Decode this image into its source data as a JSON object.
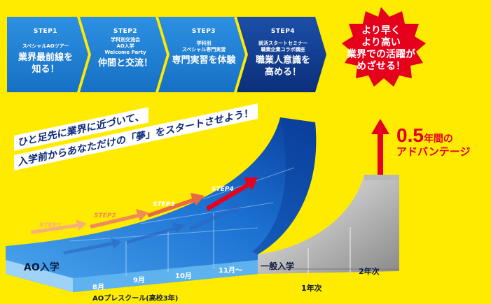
{
  "steps": [
    {
      "label": "STEP1",
      "sub": [
        "スペシャルAOツアー"
      ],
      "main": [
        "業界最前線を",
        "知る！"
      ]
    },
    {
      "label": "STEP2",
      "sub": [
        "学科別交流会",
        "AO入学",
        "Welcome Party"
      ],
      "main": [
        "仲間と交流！"
      ]
    },
    {
      "label": "STEP3",
      "sub": [
        "学科別",
        "スペシャル専門実習"
      ],
      "main": [
        "専門実習を体験"
      ]
    },
    {
      "label": "STEP4",
      "sub": [
        "就活スタートセミナー",
        "職業企業コラボ講座"
      ],
      "main": [
        "職業人意識を",
        "高める！"
      ]
    }
  ],
  "badge": {
    "lines": [
      "より早く",
      "より高い",
      "業界での活躍が",
      "めざせる！"
    ]
  },
  "advantage": {
    "number": "0.5",
    "unit": "年間の",
    "label": "アドバンテージ"
  },
  "lead": {
    "line1": "ひと足先に業界に近づいて、",
    "line2": "入学前からあなただけの「夢」をスタートさせよう！"
  },
  "ramp": {
    "ao_label": "AO入学",
    "general_label": "一般入学",
    "pre_school": "AOプレスクール(高校3年)",
    "months": [
      "8月",
      "9月",
      "10月",
      "11月〜"
    ],
    "years": [
      "1年次",
      "2年次"
    ],
    "ramp_steps": [
      "STEP1",
      "STEP2",
      "STEP3",
      "STEP4"
    ]
  },
  "colors": {
    "background": "#ffeb00",
    "step_blue": "#1e7fd0",
    "step_dark": "#0d3a8a",
    "badge_red": "#e5001c",
    "accent": "#e5001c"
  }
}
